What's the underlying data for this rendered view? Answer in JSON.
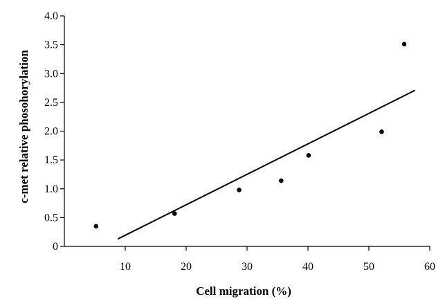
{
  "chart_data": {
    "type": "scatter",
    "title": "",
    "xlabel": "Cell migration (%)",
    "ylabel": "c-met relative phosohorylation",
    "xlim": [
      0,
      60
    ],
    "ylim": [
      0,
      4.0
    ],
    "x_ticks": [
      "10",
      "20",
      "30",
      "40",
      "50",
      "60"
    ],
    "y_ticks": [
      "0",
      "0.5",
      "1.0",
      "1.5",
      "2.0",
      "2.5",
      "3.0",
      "3.5",
      "4.0"
    ],
    "x_tick_values": [
      10,
      20,
      30,
      40,
      50,
      60
    ],
    "y_tick_values": [
      0,
      0.5,
      1.0,
      1.5,
      2.0,
      2.5,
      3.0,
      3.5,
      4.0
    ],
    "grid": false,
    "legend": "none",
    "points": [
      {
        "x": 5.2,
        "y": 0.35
      },
      {
        "x": 18.1,
        "y": 0.57
      },
      {
        "x": 28.7,
        "y": 0.98
      },
      {
        "x": 35.6,
        "y": 1.14
      },
      {
        "x": 40.1,
        "y": 1.58
      },
      {
        "x": 52.1,
        "y": 1.99
      },
      {
        "x": 55.8,
        "y": 3.51
      }
    ],
    "trendline": {
      "x": [
        8.8,
        57.6
      ],
      "y": [
        0.13,
        2.71
      ]
    },
    "marker_color": "#000000",
    "line_color": "#000000"
  }
}
